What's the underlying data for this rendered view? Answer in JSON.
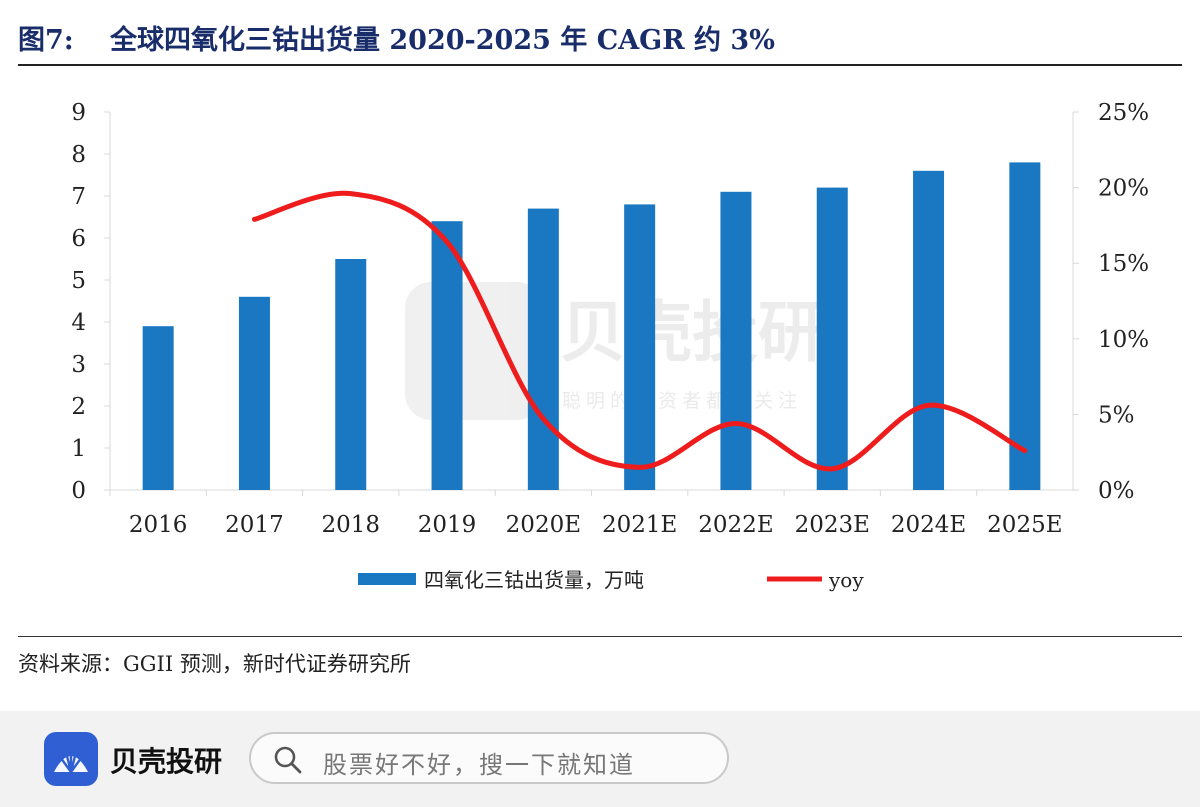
{
  "figure": {
    "label": "图7:",
    "title": "全球四氧化三钴出货量 2020-2025 年 CAGR 约 3%"
  },
  "source": "资料来源：GGII 预测，新时代证券研究所",
  "watermark": {
    "name": "贝壳投研",
    "slogan": "聪明的投资者都在关注"
  },
  "footer": {
    "logo_text": "贝壳投研",
    "search_placeholder": "股票好不好，搜一下就知道",
    "logo_icon": "shell-logo-icon",
    "search_icon": "search-icon"
  },
  "chart_data": {
    "type": "bar",
    "categories": [
      "2016",
      "2017",
      "2018",
      "2019",
      "2020E",
      "2021E",
      "2022E",
      "2023E",
      "2024E",
      "2025E"
    ],
    "series": [
      {
        "name": "四氧化三钴出货量，万吨",
        "type": "bar",
        "axis": "left",
        "color": "#1a78c2",
        "values": [
          3.9,
          4.6,
          5.5,
          6.4,
          6.7,
          6.8,
          7.1,
          7.2,
          7.6,
          7.8
        ]
      },
      {
        "name": "yoy",
        "type": "line",
        "axis": "right",
        "color": "#ee1c1c",
        "values": [
          null,
          17.9,
          19.6,
          16.4,
          4.7,
          1.5,
          4.4,
          1.4,
          5.6,
          2.6
        ]
      }
    ],
    "y_left": {
      "min": 0,
      "max": 9,
      "ticks": [
        "0",
        "1",
        "2",
        "3",
        "4",
        "5",
        "6",
        "7",
        "8",
        "9"
      ]
    },
    "y_right": {
      "min": 0,
      "max": 25,
      "ticks": [
        "0%",
        "5%",
        "10%",
        "15%",
        "20%",
        "25%"
      ]
    },
    "legend_position": "bottom",
    "grid": false
  }
}
